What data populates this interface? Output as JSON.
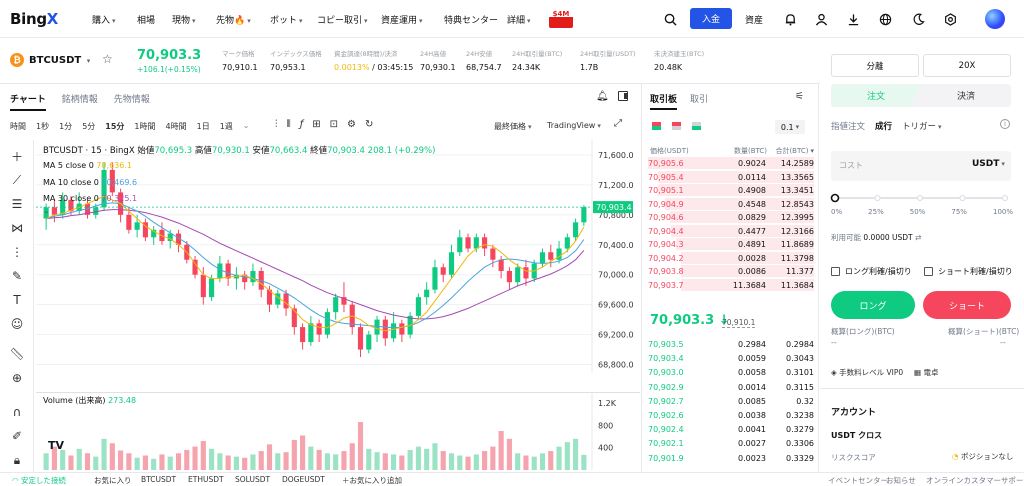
{
  "nav": {
    "logo_main": "Bing",
    "logo_x": "X",
    "items": [
      "購入",
      "相場",
      "現物",
      "先物🔥",
      "ボット",
      "コピー取引",
      "資産運用",
      "特典センター",
      "詳細"
    ],
    "promo_badge": "$4M",
    "deposit_label": "入金",
    "assets_label": "資産"
  },
  "ticker": {
    "symbol": "BTCUSDT",
    "coin_letter": "₿",
    "price": "70,903.3",
    "change": "+106.1(+0.15%)",
    "stats": [
      {
        "label": "マーク価格",
        "value": "70,910.1"
      },
      {
        "label": "インデックス価格",
        "value": "70,953.1"
      },
      {
        "label": "資金調達(8時間)/決済",
        "value": "0.0013%",
        "value2": " / 03:45:15"
      },
      {
        "label": "24H高値",
        "value": "70,930.1"
      },
      {
        "label": "24H安値",
        "value": "68,754.7"
      },
      {
        "label": "24H取引量(BTC)",
        "value": "24.34K"
      },
      {
        "label": "24H取引量(USDT)",
        "value": "1.7B"
      },
      {
        "label": "未決済建玉(BTC)",
        "value": "20.48K"
      }
    ]
  },
  "chart_tabs": [
    "チャート",
    "銘柄情報",
    "先物情報"
  ],
  "timeframes": [
    "時間",
    "1秒",
    "1分",
    "5分",
    "15分",
    "1時間",
    "4時間",
    "1日",
    "1週"
  ],
  "chart_toolbar": {
    "price_type": "最終価格",
    "view": "TradingView"
  },
  "chart_legend": {
    "title": "BTCUSDT · 15 · BingX",
    "o_label": "始値",
    "o": "70,695.3",
    "h_label": "高値",
    "h": "70,930.1",
    "l_label": "安値",
    "l": "70,663.4",
    "c_label": "終値",
    "c": "70,903.4",
    "chg": "208.1 (+0.29%)",
    "ma5_label": "MA 5 close 0",
    "ma5": "70,636.1",
    "ma10_label": "MA 10 close 0",
    "ma10": "70,469.6",
    "ma30_label": "MA 30 close 0",
    "ma30": "70,325.1",
    "volume_label": "Volume (出来高)",
    "volume": "273.48"
  },
  "colors": {
    "up": "#0ecb81",
    "down": "#f6465d",
    "ma5": "#f0b90b",
    "ma10": "#4aa3df",
    "ma30": "#a64ab3",
    "accent": "#2354e6"
  },
  "chart_data": {
    "type": "candlestick",
    "price_ticks": [
      "71,600.0",
      "71,200.0",
      "70,800.0",
      "70,400.0",
      "70,000.0",
      "69,600.0",
      "69,200.0",
      "68,800.0"
    ],
    "price_tick_values": [
      71600,
      71200,
      70800,
      70400,
      70000,
      69600,
      69200,
      68800
    ],
    "ylim": [
      68700,
      71800
    ],
    "current_price_label": "70,903.4",
    "current_price": 70903.4,
    "volume_ticks": [
      "1.2K",
      "800",
      "400"
    ],
    "volume_tick_values": [
      1200,
      800,
      400
    ],
    "volume_ylim": [
      0,
      1400
    ],
    "candles": [
      [
        70750,
        70900,
        70600,
        70950
      ],
      [
        70900,
        70800,
        70700,
        71000
      ],
      [
        70800,
        71000,
        70750,
        71100
      ],
      [
        71000,
        70850,
        70800,
        71050
      ],
      [
        70850,
        70950,
        70800,
        71100
      ],
      [
        70950,
        70800,
        70750,
        71000
      ],
      [
        70800,
        70900,
        70750,
        70950
      ],
      [
        70900,
        71400,
        70850,
        71500
      ],
      [
        71400,
        71100,
        71050,
        71500
      ],
      [
        71100,
        70800,
        70700,
        71150
      ],
      [
        70800,
        70600,
        70550,
        70900
      ],
      [
        70600,
        70700,
        70500,
        70800
      ],
      [
        70700,
        70500,
        70450,
        70750
      ],
      [
        70500,
        70600,
        70400,
        70650
      ],
      [
        70600,
        70450,
        70400,
        70700
      ],
      [
        70450,
        70550,
        70350,
        70600
      ],
      [
        70550,
        70400,
        70300,
        70600
      ],
      [
        70400,
        70200,
        70150,
        70450
      ],
      [
        70200,
        70000,
        69950,
        70250
      ],
      [
        70000,
        69700,
        69600,
        70100
      ],
      [
        69700,
        69950,
        69650,
        70000
      ],
      [
        69950,
        70150,
        69900,
        70250
      ],
      [
        70150,
        69950,
        69850,
        70200
      ],
      [
        69950,
        70000,
        69800,
        70100
      ],
      [
        70000,
        69900,
        69800,
        70050
      ],
      [
        69900,
        70050,
        69850,
        70150
      ],
      [
        70050,
        69800,
        69700,
        70100
      ],
      [
        69800,
        69600,
        69500,
        69850
      ],
      [
        69600,
        69750,
        69550,
        69800
      ],
      [
        69750,
        69550,
        69450,
        69800
      ],
      [
        69550,
        69300,
        69200,
        69600
      ],
      [
        69300,
        69100,
        69000,
        69350
      ],
      [
        69100,
        69350,
        69050,
        69450
      ],
      [
        69350,
        69200,
        69100,
        69400
      ],
      [
        69200,
        69500,
        69150,
        69550
      ],
      [
        69500,
        69700,
        69400,
        69750
      ],
      [
        69700,
        69600,
        69500,
        69900
      ],
      [
        69600,
        69300,
        69200,
        69650
      ],
      [
        69300,
        69000,
        68900,
        69350
      ],
      [
        69000,
        69200,
        68950,
        69250
      ],
      [
        69200,
        69400,
        69100,
        69450
      ],
      [
        69400,
        69150,
        69050,
        69450
      ],
      [
        69150,
        69350,
        69100,
        69500
      ],
      [
        69350,
        69200,
        69100,
        69400
      ],
      [
        69200,
        69450,
        69150,
        69500
      ],
      [
        69450,
        69700,
        69400,
        69750
      ],
      [
        69700,
        69800,
        69600,
        69900
      ],
      [
        69800,
        70100,
        69750,
        70200
      ],
      [
        70100,
        70000,
        69900,
        70150
      ],
      [
        70000,
        70300,
        69950,
        70400
      ],
      [
        70300,
        70500,
        70250,
        70600
      ],
      [
        70500,
        70350,
        70300,
        70550
      ],
      [
        70350,
        70500,
        70300,
        70550
      ],
      [
        70500,
        70350,
        70250,
        70550
      ],
      [
        70350,
        70200,
        70100,
        70400
      ],
      [
        70200,
        70050,
        69950,
        70250
      ],
      [
        70050,
        69900,
        69800,
        70100
      ],
      [
        69900,
        70100,
        69850,
        70150
      ],
      [
        70100,
        69950,
        69850,
        70200
      ],
      [
        69950,
        70150,
        69900,
        70200
      ],
      [
        70150,
        70300,
        70100,
        70350
      ],
      [
        70300,
        70200,
        70100,
        70400
      ],
      [
        70200,
        70350,
        70150,
        70450
      ],
      [
        70350,
        70500,
        70300,
        70550
      ],
      [
        70500,
        70700,
        70450,
        70750
      ],
      [
        70700,
        70903,
        70650,
        70930
      ]
    ],
    "volumes": [
      300,
      420,
      360,
      260,
      380,
      300,
      240,
      560,
      480,
      350,
      300,
      220,
      260,
      200,
      280,
      240,
      300,
      360,
      420,
      520,
      380,
      300,
      260,
      240,
      220,
      280,
      340,
      460,
      300,
      320,
      540,
      620,
      420,
      360,
      300,
      280,
      340,
      480,
      860,
      380,
      320,
      300,
      280,
      260,
      360,
      420,
      380,
      480,
      340,
      300,
      260,
      240,
      280,
      340,
      420,
      700,
      560,
      300,
      260,
      240,
      300,
      340,
      420,
      500,
      560,
      273
    ],
    "ma5": [
      70750,
      70800,
      70820,
      70860,
      70900,
      70950,
      71000,
      71050,
      71000,
      70950,
      70850,
      70750,
      70650,
      70580,
      70520,
      70480,
      70400,
      70300,
      70150,
      70000,
      69950,
      69950,
      69970,
      69980,
      69990,
      69950,
      69880,
      69790,
      69700,
      69620,
      69520,
      69400,
      69330,
      69300,
      69290,
      69350,
      69420,
      69450,
      69400,
      69320,
      69280,
      69250,
      69270,
      69300,
      69320,
      69400,
      69500,
      69650,
      69800,
      69950,
      70100,
      70250,
      70350,
      70400,
      70380,
      70300,
      70200,
      70120,
      70050,
      70050,
      70100,
      70180,
      70240,
      70320,
      70450,
      70636
    ],
    "ma10": [
      70750,
      70780,
      70800,
      70830,
      70860,
      70880,
      70920,
      70950,
      70960,
      70950,
      70900,
      70850,
      70780,
      70700,
      70630,
      70560,
      70490,
      70420,
      70330,
      70230,
      70140,
      70070,
      70020,
      69990,
      69970,
      69950,
      69920,
      69880,
      69820,
      69760,
      69690,
      69610,
      69530,
      69460,
      69410,
      69370,
      69350,
      69340,
      69330,
      69320,
      69310,
      69300,
      69290,
      69300,
      69320,
      69360,
      69420,
      69500,
      69590,
      69690,
      69800,
      69910,
      70010,
      70100,
      70160,
      70200,
      70210,
      70200,
      70180,
      70160,
      70150,
      70160,
      70180,
      70230,
      70320,
      70470
    ],
    "ma30": [
      70750,
      70760,
      70770,
      70790,
      70800,
      70820,
      70840,
      70860,
      70870,
      70870,
      70860,
      70850,
      70830,
      70800,
      70770,
      70730,
      70690,
      70640,
      70590,
      70540,
      70480,
      70420,
      70370,
      70320,
      70270,
      70220,
      70170,
      70120,
      70070,
      70020,
      69970,
      69920,
      69860,
      69810,
      69760,
      69720,
      69680,
      69640,
      69600,
      69560,
      69520,
      69490,
      69460,
      69440,
      69420,
      69410,
      69410,
      69420,
      69440,
      69470,
      69510,
      69550,
      69600,
      69650,
      69700,
      69750,
      69800,
      69850,
      69890,
      69930,
      69970,
      70010,
      70060,
      70120,
      70200,
      70325
    ]
  },
  "orderbook": {
    "tabs": [
      "取引板",
      "取引"
    ],
    "depth": "0.1",
    "headers": [
      "価格(USDT)",
      "数量(BTC)",
      "合計(BTC)"
    ],
    "asks": [
      [
        "70,905.6",
        "0.9024",
        "14.2589"
      ],
      [
        "70,905.4",
        "0.0114",
        "13.3565"
      ],
      [
        "70,905.1",
        "0.4908",
        "13.3451"
      ],
      [
        "70,904.9",
        "0.4548",
        "12.8543"
      ],
      [
        "70,904.6",
        "0.0829",
        "12.3995"
      ],
      [
        "70,904.4",
        "0.4477",
        "12.3166"
      ],
      [
        "70,904.3",
        "0.4891",
        "11.8689"
      ],
      [
        "70,904.2",
        "0.0028",
        "11.3798"
      ],
      [
        "70,903.8",
        "0.0086",
        "11.377"
      ],
      [
        "70,903.7",
        "11.3684",
        "11.3684"
      ]
    ],
    "ask_fill": [
      1.0,
      0.94,
      0.94,
      0.9,
      0.87,
      0.86,
      0.83,
      0.8,
      0.8,
      0.8
    ],
    "last_price": "70,903.3",
    "last_arrow": "↓",
    "mark_price": "70,910.1",
    "bids": [
      [
        "70,903.5",
        "0.2984",
        "0.2984"
      ],
      [
        "70,903.4",
        "0.0059",
        "0.3043"
      ],
      [
        "70,903.0",
        "0.0058",
        "0.3101"
      ],
      [
        "70,902.9",
        "0.0014",
        "0.3115"
      ],
      [
        "70,902.7",
        "0.0085",
        "0.32"
      ],
      [
        "70,902.6",
        "0.0038",
        "0.3238"
      ],
      [
        "70,902.4",
        "0.0041",
        "0.3279"
      ],
      [
        "70,902.1",
        "0.0027",
        "0.3306"
      ],
      [
        "70,901.9",
        "0.0023",
        "0.3329"
      ]
    ]
  },
  "trade": {
    "margin_mode": "分離",
    "leverage": "20X",
    "open_tab": "注文",
    "close_tab": "決済",
    "order_types": [
      "指値注文",
      "成行",
      "トリガー"
    ],
    "cost_placeholder": "コスト",
    "currency": "USDT",
    "slider_marks": [
      "0%",
      "25%",
      "50%",
      "75%",
      "100%"
    ],
    "slider_value": 0,
    "available_label": "利用可能",
    "available_value": "0.0000 USDT",
    "long_tp_sl": "ロング利確/損切り",
    "short_tp_sl": "ショート利確/損切り",
    "long_btn": "ロング",
    "short_btn": "ショート",
    "est_long_label": "概算(ロング)(BTC)",
    "est_short_label": "概算(ショート)(BTC)",
    "est_long": "--",
    "est_short": "--",
    "fee_level": "手数料レベル VIP0",
    "calculator": "電卓",
    "account_title": "アカウント",
    "account_type": "USDT クロス",
    "risk_label": "リスクスコア",
    "position_label": "ポジションなし"
  },
  "statusbar": {
    "connection": "安定した接続",
    "favorites": "お気に入り",
    "pairs": [
      "BTCUSDT",
      "ETHUSDT",
      "SOLUSDT",
      "DOGEUSDT"
    ],
    "add_fav": "お気に入り追加",
    "right": [
      "イベントセンター",
      "お知らせ",
      "オンラインカスタマーサポート"
    ]
  }
}
